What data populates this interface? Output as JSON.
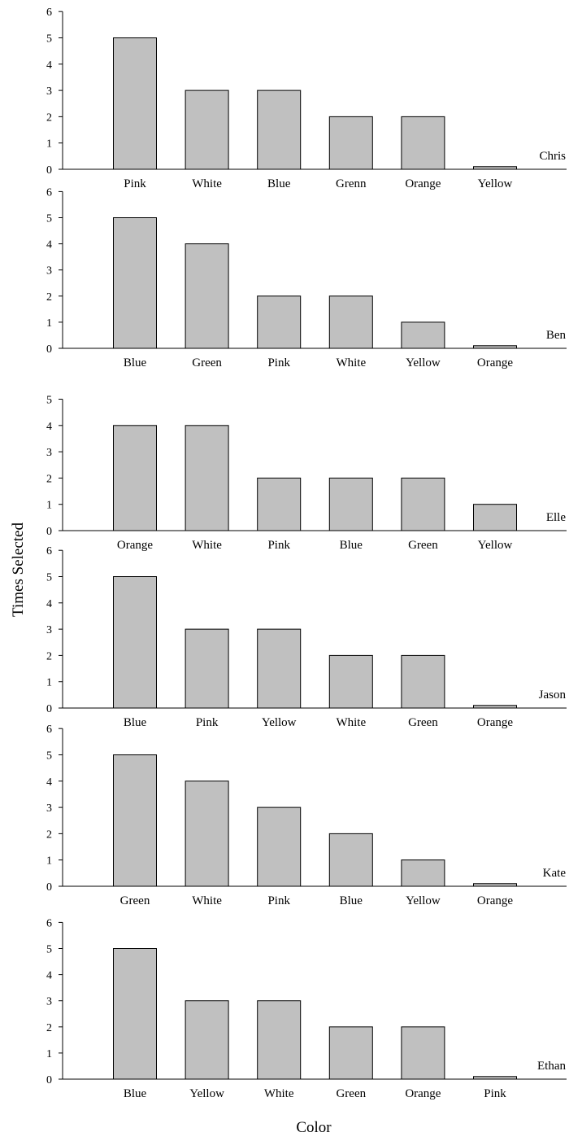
{
  "chart_data": {
    "type": "bar",
    "ylabel": "Times Selected",
    "xlabel": "Color",
    "panels": [
      {
        "name": "Chris",
        "ylim": [
          0,
          6
        ],
        "categories": [
          "Pink",
          "White",
          "Blue",
          "Grenn",
          "Orange",
          "Yellow"
        ],
        "values": [
          5,
          3,
          3,
          2,
          2,
          0.1
        ]
      },
      {
        "name": "Ben",
        "ylim": [
          0,
          6
        ],
        "categories": [
          "Blue",
          "Green",
          "Pink",
          "White",
          "Yellow",
          "Orange"
        ],
        "values": [
          5,
          4,
          2,
          2,
          1,
          0.1
        ]
      },
      {
        "name": "Elle",
        "ylim": [
          0,
          5
        ],
        "categories": [
          "Orange",
          "White",
          "Pink",
          "Blue",
          "Green",
          "Yellow"
        ],
        "values": [
          4,
          4,
          2,
          2,
          2,
          1
        ]
      },
      {
        "name": "Jason",
        "ylim": [
          0,
          6
        ],
        "categories": [
          "Blue",
          "Pink",
          "Yellow",
          "White",
          "Green",
          "Orange"
        ],
        "values": [
          5,
          3,
          3,
          2,
          2,
          0.1
        ]
      },
      {
        "name": "Kate",
        "ylim": [
          0,
          6
        ],
        "categories": [
          "Green",
          "White",
          "Pink",
          "Blue",
          "Yellow",
          "Orange"
        ],
        "values": [
          5,
          4,
          3,
          2,
          1,
          0.1
        ]
      },
      {
        "name": "Ethan",
        "ylim": [
          0,
          6
        ],
        "categories": [
          "Blue",
          "Yellow",
          "White",
          "Green",
          "Orange",
          "Pink"
        ],
        "values": [
          5,
          3,
          3,
          2,
          2,
          0.1
        ]
      }
    ],
    "colors": {
      "bar_fill": "#c0c0c0",
      "bar_stroke": "#000000"
    },
    "grid": false
  }
}
